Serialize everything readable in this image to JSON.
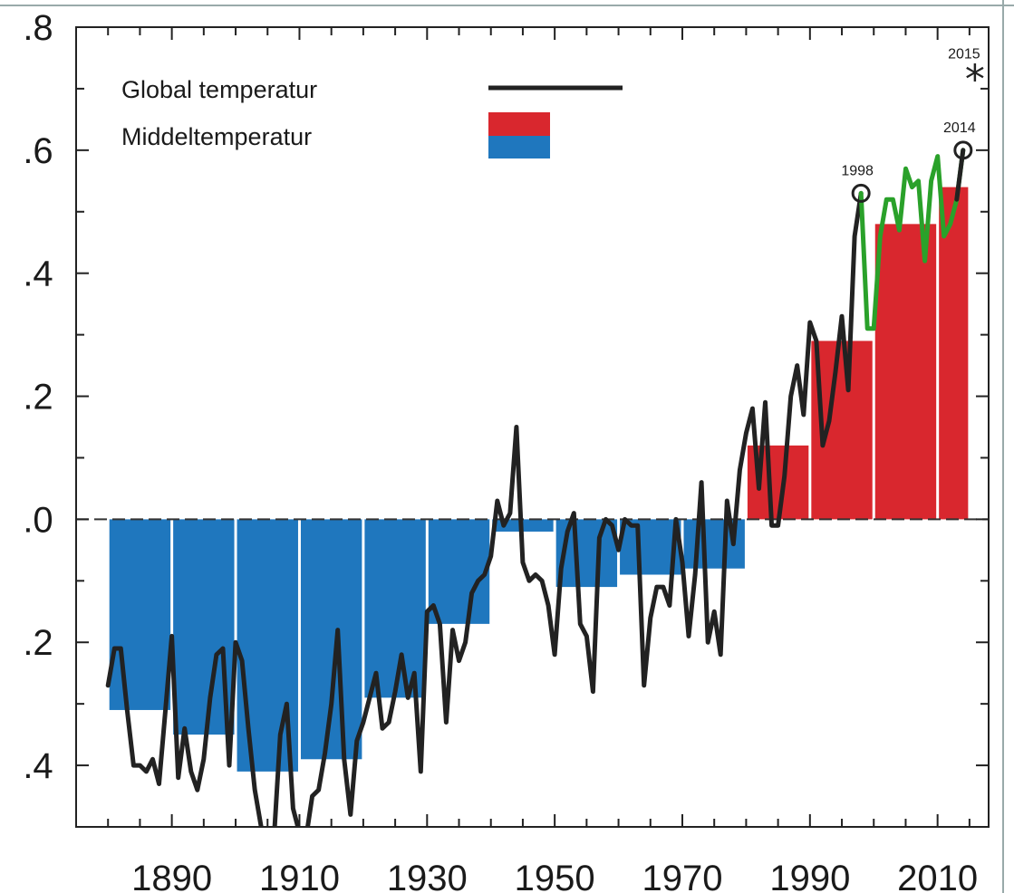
{
  "chart_data": {
    "type": "bar",
    "title": "",
    "xlabel": "",
    "ylabel": "",
    "xlim": [
      1875,
      2018
    ],
    "ylim": [
      -0.5,
      0.8
    ],
    "x_ticks": [
      1890,
      1910,
      1930,
      1950,
      1970,
      1990,
      2010
    ],
    "y_ticks": [
      -0.4,
      -0.2,
      0.0,
      0.2,
      0.4,
      0.6,
      0.8
    ],
    "y_tick_labels": [
      ".4",
      ".2",
      ".0",
      ".2",
      ".4",
      ".6",
      ".8"
    ],
    "grid": false,
    "legend_position": "top-left",
    "legend": [
      {
        "label": "Global temperatur",
        "kind": "line",
        "color": "#222222"
      },
      {
        "label": "Middeltemperatur",
        "kind": "bar",
        "colors": [
          "#d9272e",
          "#1f77be"
        ]
      }
    ],
    "colors": {
      "positive": "#d9272e",
      "negative": "#1f77be",
      "line": "#222222",
      "highlight": "#2aa12a"
    },
    "decadal_bars": [
      {
        "start": 1880,
        "end": 1890,
        "value": -0.31
      },
      {
        "start": 1890,
        "end": 1900,
        "value": -0.35
      },
      {
        "start": 1900,
        "end": 1910,
        "value": -0.41
      },
      {
        "start": 1910,
        "end": 1920,
        "value": -0.39
      },
      {
        "start": 1920,
        "end": 1930,
        "value": -0.29
      },
      {
        "start": 1930,
        "end": 1940,
        "value": -0.17
      },
      {
        "start": 1940,
        "end": 1950,
        "value": -0.02
      },
      {
        "start": 1950,
        "end": 1960,
        "value": -0.11
      },
      {
        "start": 1960,
        "end": 1970,
        "value": -0.09
      },
      {
        "start": 1970,
        "end": 1980,
        "value": -0.08
      },
      {
        "start": 1980,
        "end": 1990,
        "value": 0.12
      },
      {
        "start": 1990,
        "end": 2000,
        "value": 0.29
      },
      {
        "start": 2000,
        "end": 2010,
        "value": 0.48
      },
      {
        "start": 2010,
        "end": 2015,
        "value": 0.54
      }
    ],
    "series": [
      {
        "x": [
          1880,
          1881,
          1882,
          1883,
          1884,
          1885,
          1886,
          1887,
          1888,
          1889,
          1890,
          1891,
          1892,
          1893,
          1894,
          1895,
          1896,
          1897,
          1898,
          1899,
          1900,
          1901,
          1902,
          1903,
          1904,
          1905,
          1906,
          1907,
          1908,
          1909,
          1910,
          1911,
          1912,
          1913,
          1914,
          1915,
          1916,
          1917,
          1918,
          1919,
          1920,
          1921,
          1922,
          1923,
          1924,
          1925,
          1926,
          1927,
          1928,
          1929,
          1930,
          1931,
          1932,
          1933,
          1934,
          1935,
          1936,
          1937,
          1938,
          1939,
          1940,
          1941,
          1942,
          1943,
          1944,
          1945,
          1946,
          1947,
          1948,
          1949,
          1950,
          1951,
          1952,
          1953,
          1954,
          1955,
          1956,
          1957,
          1958,
          1959,
          1960,
          1961,
          1962,
          1963,
          1964,
          1965,
          1966,
          1967,
          1968,
          1969,
          1970,
          1971,
          1972,
          1973,
          1974,
          1975,
          1976,
          1977,
          1978,
          1979,
          1980,
          1981,
          1982,
          1983,
          1984,
          1985,
          1986,
          1987,
          1988,
          1989,
          1990,
          1991,
          1992,
          1993,
          1994,
          1995,
          1996,
          1997,
          1998
        ],
        "values": [
          -0.27,
          -0.21,
          -0.21,
          -0.31,
          -0.4,
          -0.4,
          -0.41,
          -0.39,
          -0.43,
          -0.31,
          -0.19,
          -0.42,
          -0.34,
          -0.41,
          -0.44,
          -0.39,
          -0.29,
          -0.22,
          -0.21,
          -0.4,
          -0.2,
          -0.23,
          -0.34,
          -0.44,
          -0.5,
          -0.53,
          -0.52,
          -0.35,
          -0.3,
          -0.47,
          -0.51,
          -0.52,
          -0.45,
          -0.44,
          -0.38,
          -0.3,
          -0.18,
          -0.39,
          -0.48,
          -0.36,
          -0.33,
          -0.29,
          -0.25,
          -0.34,
          -0.33,
          -0.28,
          -0.22,
          -0.29,
          -0.25,
          -0.41,
          -0.15,
          -0.14,
          -0.17,
          -0.33,
          -0.18,
          -0.23,
          -0.2,
          -0.12,
          -0.1,
          -0.09,
          -0.06,
          0.03,
          -0.01,
          0.01,
          0.15,
          -0.07,
          -0.1,
          -0.09,
          -0.1,
          -0.14,
          -0.22,
          -0.08,
          -0.02,
          0.01,
          -0.17,
          -0.19,
          -0.28,
          -0.03,
          0.0,
          -0.01,
          -0.05,
          0.0,
          -0.01,
          -0.01,
          -0.27,
          -0.16,
          -0.11,
          -0.11,
          -0.14,
          0.0,
          -0.07,
          -0.19,
          -0.09,
          0.06,
          -0.2,
          -0.15,
          -0.22,
          0.03,
          -0.04,
          0.08,
          0.14,
          0.18,
          0.05,
          0.19,
          -0.01,
          -0.01,
          0.07,
          0.2,
          0.25,
          0.17,
          0.32,
          0.29,
          0.12,
          0.16,
          0.24,
          0.33,
          0.21,
          0.46,
          0.53
        ],
        "color": "#222222"
      },
      {
        "x": [
          1998,
          1999,
          2000,
          2001,
          2002,
          2003,
          2004,
          2005,
          2006,
          2007,
          2008,
          2009,
          2010,
          2011,
          2012,
          2013,
          2014
        ],
        "values": [
          0.53,
          0.31,
          0.31,
          0.46,
          0.52,
          0.52,
          0.47,
          0.57,
          0.54,
          0.55,
          0.42,
          0.55,
          0.59,
          0.46,
          0.48,
          0.52,
          0.6
        ],
        "color": "#2aa12a"
      }
    ],
    "annotations": [
      {
        "label": "1998",
        "x": 1998,
        "y": 0.53,
        "marker": "circle"
      },
      {
        "label": "2014",
        "x": 2014,
        "y": 0.6,
        "marker": "circle"
      },
      {
        "label": "2015",
        "x": 2015,
        "y": 0.72,
        "marker": "star"
      }
    ]
  }
}
